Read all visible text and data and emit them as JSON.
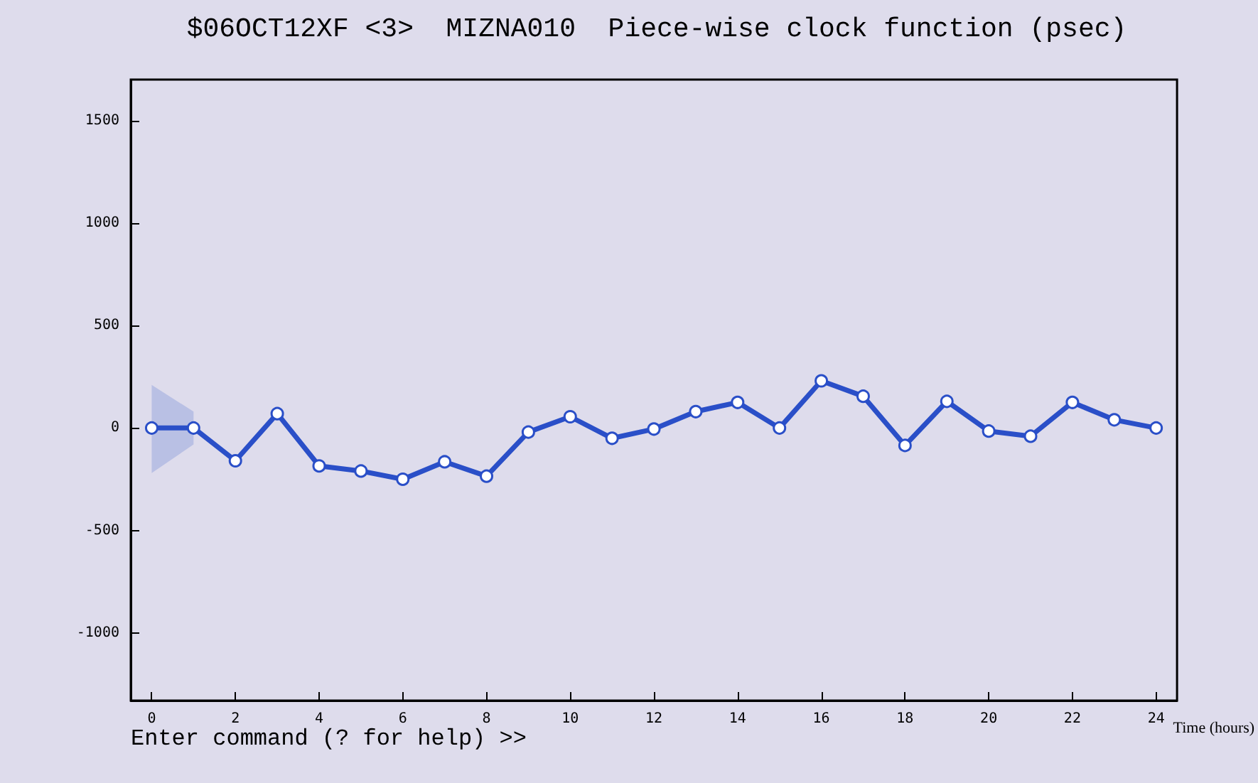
{
  "chart_data": {
    "type": "line",
    "title": "$06OCT12XF <3>  MIZNA010  Piece-wise clock function (psec)",
    "xlabel": "Time (hours)",
    "annotations": [
      "Enter command (? for help) >>"
    ],
    "x": [
      0,
      1,
      2,
      3,
      4,
      5,
      6,
      7,
      8,
      9,
      10,
      11,
      12,
      13,
      14,
      15,
      16,
      17,
      18,
      19,
      20,
      21,
      22,
      23,
      24
    ],
    "series": [
      {
        "color": "#2a4fc8",
        "values": [
          0,
          0,
          -160,
          70,
          -185,
          -210,
          -250,
          -165,
          -235,
          -20,
          55,
          -50,
          -5,
          80,
          125,
          0,
          230,
          155,
          -85,
          130,
          -15,
          -40,
          125,
          40,
          0
        ],
        "lower": [
          -220,
          -80,
          null,
          null,
          null,
          null,
          null,
          null,
          null,
          null,
          null,
          null,
          null,
          null,
          null,
          null,
          null,
          null,
          null,
          null,
          null,
          null,
          null,
          null,
          null
        ],
        "upper": [
          210,
          80,
          null,
          null,
          null,
          null,
          null,
          null,
          null,
          null,
          null,
          null,
          null,
          null,
          null,
          null,
          null,
          null,
          null,
          null,
          null,
          null,
          null,
          null,
          null
        ]
      }
    ],
    "xlim": [
      -0.5,
      24.5
    ],
    "xticks": [
      0,
      2,
      4,
      6,
      8,
      10,
      12,
      14,
      16,
      18,
      20,
      22,
      24
    ],
    "ylim": [
      -1330,
      1700
    ],
    "yticks": [
      -1000,
      -500,
      0,
      500,
      1000,
      1500
    ],
    "marker": "circle",
    "line_style": "solid"
  }
}
